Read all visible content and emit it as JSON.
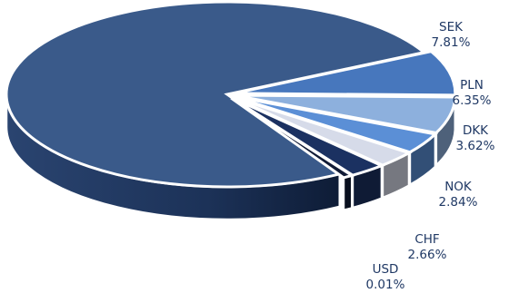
{
  "chart_data": {
    "type": "pie",
    "title": "",
    "series": [
      {
        "name": "",
        "values": [
          76.71,
          7.81,
          6.35,
          3.62,
          2.84,
          2.66,
          0.01
        ]
      }
    ],
    "categories": [
      "",
      "SEK",
      "PLN",
      "DKK",
      "NOK",
      "CHF",
      "USD"
    ],
    "values": [
      76.71,
      7.81,
      6.35,
      3.62,
      2.84,
      2.66,
      0.01
    ],
    "value_labels": [
      "",
      "7.81%",
      "6.35%",
      "3.62%",
      "2.84%",
      "2.66%",
      "0.01%"
    ],
    "colors": [
      "#3a5a8a",
      "#4777bd",
      "#8db0dd",
      "#5b8fd6",
      "#d6dbe9",
      "#1b3161",
      "#111b36"
    ],
    "style": "3d-exploded",
    "legend": "none"
  }
}
